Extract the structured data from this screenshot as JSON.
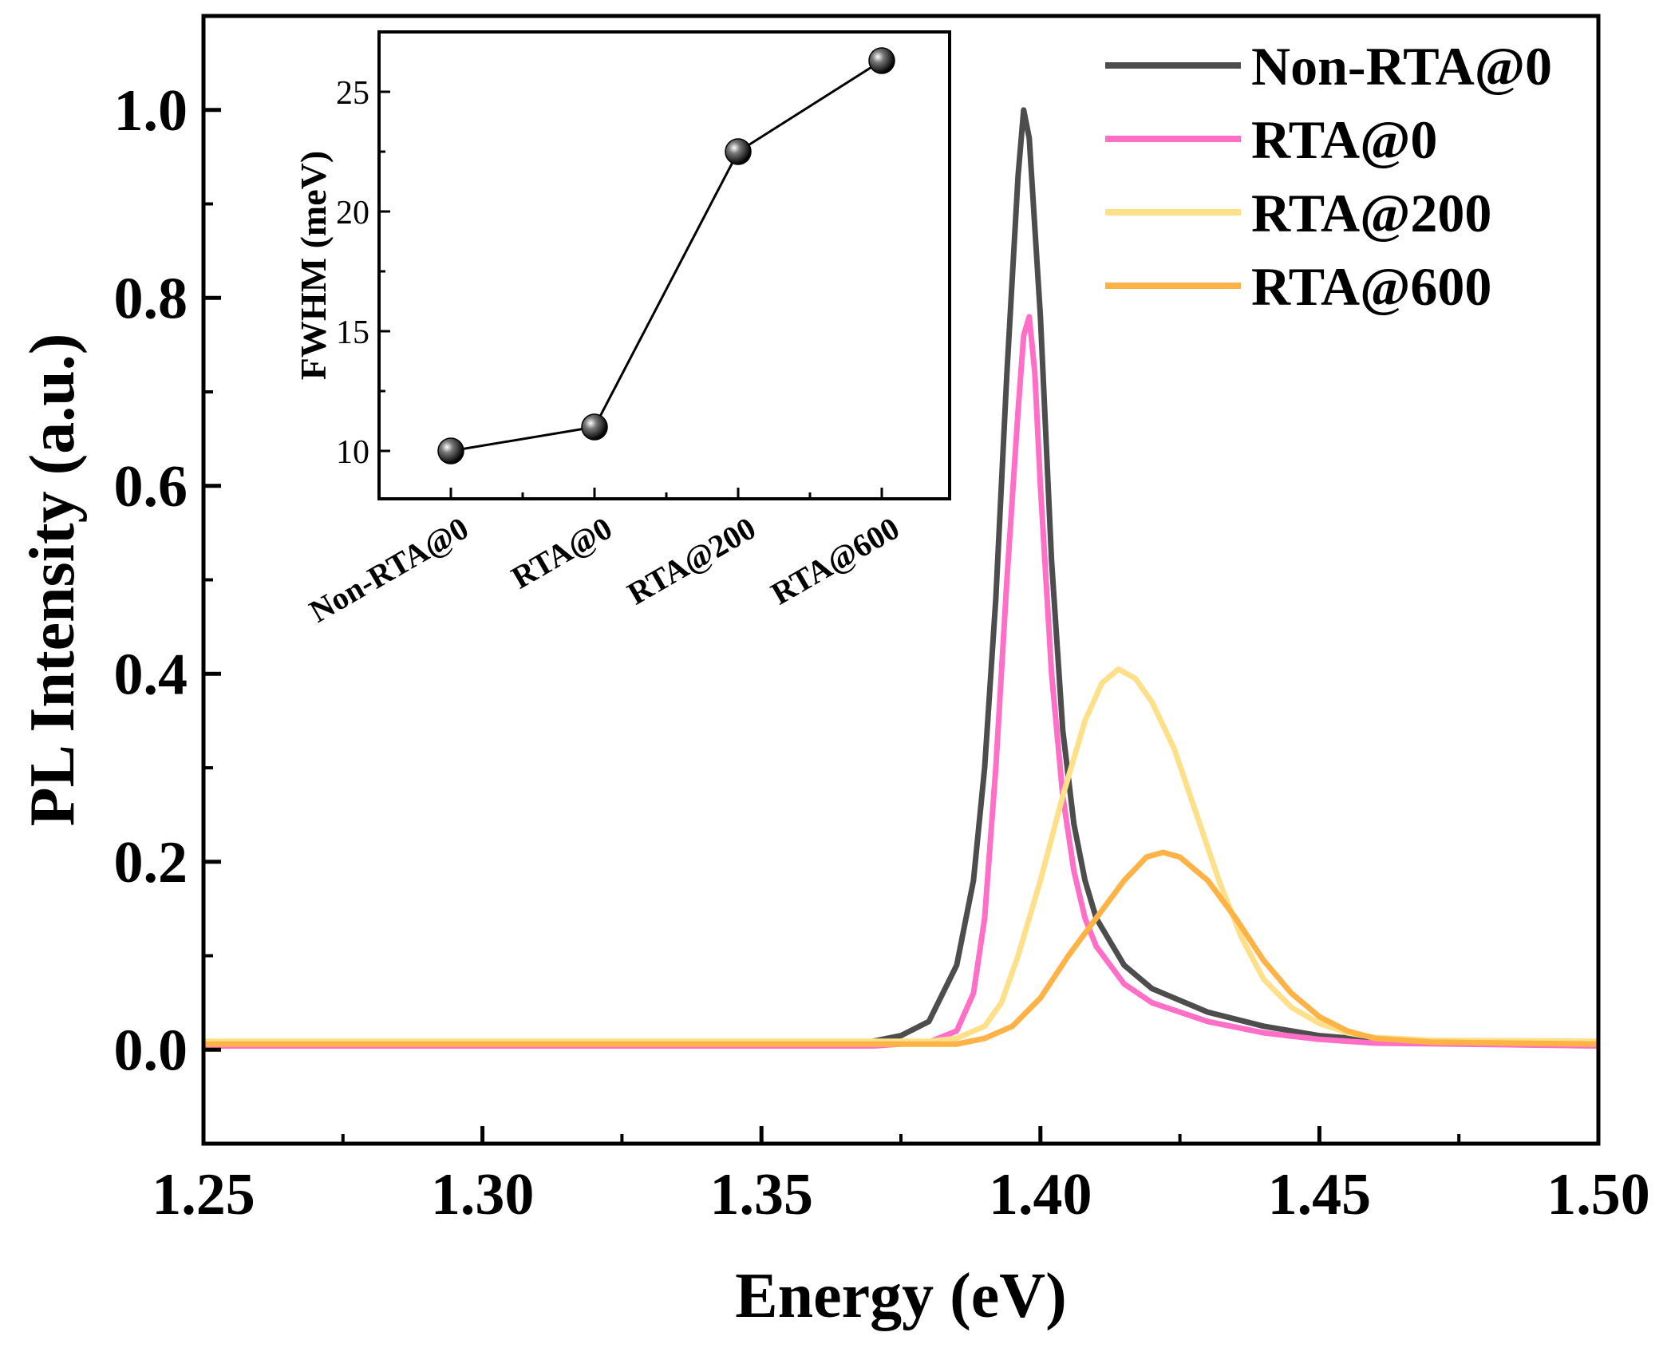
{
  "chart_data": [
    {
      "type": "line",
      "xlabel": "Energy (eV)",
      "ylabel": "PL Intensity (a.u.)",
      "xlim": [
        1.25,
        1.5
      ],
      "ylim": [
        -0.1,
        1.1
      ],
      "xticks": [
        "1.25",
        "1.30",
        "1.35",
        "1.40",
        "1.45",
        "1.50"
      ],
      "yticks": [
        "0.0",
        "0.2",
        "0.4",
        "0.6",
        "0.8",
        "1.0"
      ],
      "legend_position": "top-right",
      "grid": false,
      "series": [
        {
          "name": "Non-RTA@0",
          "color": "#4d4d4d",
          "points": [
            [
              1.25,
              0.005
            ],
            [
              1.36,
              0.005
            ],
            [
              1.37,
              0.009
            ],
            [
              1.375,
              0.015
            ],
            [
              1.38,
              0.03
            ],
            [
              1.385,
              0.09
            ],
            [
              1.388,
              0.18
            ],
            [
              1.39,
              0.3
            ],
            [
              1.392,
              0.48
            ],
            [
              1.394,
              0.72
            ],
            [
              1.396,
              0.93
            ],
            [
              1.397,
              1.0
            ],
            [
              1.398,
              0.97
            ],
            [
              1.4,
              0.78
            ],
            [
              1.402,
              0.52
            ],
            [
              1.404,
              0.34
            ],
            [
              1.406,
              0.24
            ],
            [
              1.408,
              0.18
            ],
            [
              1.41,
              0.14
            ],
            [
              1.415,
              0.09
            ],
            [
              1.42,
              0.065
            ],
            [
              1.43,
              0.04
            ],
            [
              1.44,
              0.025
            ],
            [
              1.45,
              0.015
            ],
            [
              1.46,
              0.01
            ],
            [
              1.47,
              0.007
            ],
            [
              1.5,
              0.005
            ]
          ]
        },
        {
          "name": "RTA@0",
          "color": "#ff6ec7",
          "points": [
            [
              1.25,
              0.004
            ],
            [
              1.37,
              0.004
            ],
            [
              1.38,
              0.008
            ],
            [
              1.385,
              0.02
            ],
            [
              1.388,
              0.06
            ],
            [
              1.39,
              0.14
            ],
            [
              1.392,
              0.3
            ],
            [
              1.394,
              0.5
            ],
            [
              1.396,
              0.68
            ],
            [
              1.397,
              0.76
            ],
            [
              1.398,
              0.78
            ],
            [
              1.399,
              0.72
            ],
            [
              1.4,
              0.6
            ],
            [
              1.402,
              0.4
            ],
            [
              1.404,
              0.27
            ],
            [
              1.406,
              0.19
            ],
            [
              1.408,
              0.14
            ],
            [
              1.41,
              0.11
            ],
            [
              1.415,
              0.07
            ],
            [
              1.42,
              0.05
            ],
            [
              1.43,
              0.03
            ],
            [
              1.44,
              0.018
            ],
            [
              1.45,
              0.011
            ],
            [
              1.46,
              0.007
            ],
            [
              1.5,
              0.004
            ]
          ]
        },
        {
          "name": "RTA@200",
          "color": "#ffe08a",
          "points": [
            [
              1.25,
              0.009
            ],
            [
              1.38,
              0.009
            ],
            [
              1.385,
              0.012
            ],
            [
              1.39,
              0.025
            ],
            [
              1.393,
              0.05
            ],
            [
              1.396,
              0.1
            ],
            [
              1.4,
              0.18
            ],
            [
              1.404,
              0.27
            ],
            [
              1.408,
              0.35
            ],
            [
              1.411,
              0.39
            ],
            [
              1.414,
              0.405
            ],
            [
              1.417,
              0.395
            ],
            [
              1.42,
              0.37
            ],
            [
              1.424,
              0.32
            ],
            [
              1.428,
              0.25
            ],
            [
              1.432,
              0.18
            ],
            [
              1.436,
              0.12
            ],
            [
              1.44,
              0.075
            ],
            [
              1.445,
              0.045
            ],
            [
              1.45,
              0.028
            ],
            [
              1.455,
              0.018
            ],
            [
              1.46,
              0.013
            ],
            [
              1.47,
              0.01
            ],
            [
              1.5,
              0.009
            ]
          ]
        },
        {
          "name": "RTA@600",
          "color": "#ffb347",
          "points": [
            [
              1.25,
              0.006
            ],
            [
              1.385,
              0.006
            ],
            [
              1.39,
              0.012
            ],
            [
              1.395,
              0.025
            ],
            [
              1.4,
              0.055
            ],
            [
              1.405,
              0.1
            ],
            [
              1.41,
              0.14
            ],
            [
              1.415,
              0.18
            ],
            [
              1.419,
              0.205
            ],
            [
              1.422,
              0.21
            ],
            [
              1.425,
              0.205
            ],
            [
              1.43,
              0.18
            ],
            [
              1.435,
              0.14
            ],
            [
              1.44,
              0.095
            ],
            [
              1.445,
              0.06
            ],
            [
              1.45,
              0.035
            ],
            [
              1.455,
              0.02
            ],
            [
              1.46,
              0.012
            ],
            [
              1.47,
              0.008
            ],
            [
              1.5,
              0.006
            ]
          ]
        }
      ]
    },
    {
      "type": "scatter",
      "ylabel": "FWHM (meV)",
      "categories": [
        "Non-RTA@0",
        "RTA@0",
        "RTA@200",
        "RTA@600"
      ],
      "values": [
        10.0,
        11.0,
        22.5,
        26.3
      ],
      "ylim": [
        8,
        27.5
      ],
      "yticks": [
        "10",
        "15",
        "20",
        "25"
      ],
      "connected": true
    }
  ]
}
